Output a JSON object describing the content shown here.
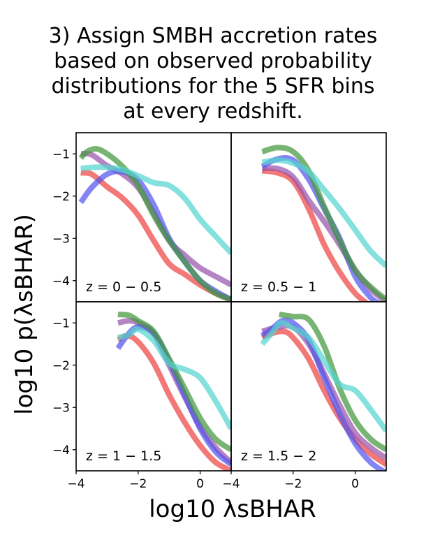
{
  "title": {
    "lines": [
      "3) Assign SMBH accretion rates",
      "based on observed probability",
      "distributions for the 5 SFR bins",
      "at every redshift."
    ]
  },
  "chart_data": {
    "type": "line",
    "xlabel": "log10 λsBHAR",
    "ylabel": "log10 p(λsBHAR)",
    "xlim": [
      -4,
      1
    ],
    "ylim": [
      -4.5,
      -0.5
    ],
    "xticks": [
      -4,
      -2,
      0
    ],
    "yticks": [
      -1,
      -2,
      -3,
      -4
    ],
    "series_colors": {
      "red": "#ee4444",
      "purple": "#9955aa",
      "blue": "#5555ee",
      "green": "#44993f",
      "cyan": "#55d5d0"
    },
    "panels": [
      {
        "label": "z = 0 − 0.5",
        "series": [
          {
            "name": "red",
            "points": [
              [
                -3.85,
                -1.45
              ],
              [
                -3.5,
                -1.48
              ],
              [
                -3.0,
                -1.78
              ],
              [
                -2.5,
                -2.05
              ],
              [
                -2.0,
                -2.45
              ],
              [
                -1.5,
                -3.05
              ],
              [
                -1.0,
                -3.6
              ],
              [
                -0.5,
                -3.85
              ],
              [
                0.0,
                -4.1
              ],
              [
                0.5,
                -4.3
              ],
              [
                1.0,
                -4.45
              ]
            ]
          },
          {
            "name": "purple",
            "points": [
              [
                -3.85,
                -1.0
              ],
              [
                -3.5,
                -1.02
              ],
              [
                -3.0,
                -1.28
              ],
              [
                -2.5,
                -1.48
              ],
              [
                -2.0,
                -1.8
              ],
              [
                -1.5,
                -2.4
              ],
              [
                -1.0,
                -3.05
              ],
              [
                -0.5,
                -3.4
              ],
              [
                0.0,
                -3.7
              ],
              [
                0.5,
                -3.9
              ],
              [
                1.0,
                -4.1
              ]
            ]
          },
          {
            "name": "blue",
            "points": [
              [
                -3.85,
                -2.15
              ],
              [
                -3.5,
                -1.8
              ],
              [
                -3.0,
                -1.48
              ],
              [
                -2.5,
                -1.42
              ],
              [
                -2.0,
                -1.62
              ],
              [
                -1.5,
                -2.2
              ],
              [
                -1.0,
                -3.0
              ],
              [
                -0.5,
                -3.55
              ],
              [
                0.0,
                -4.0
              ],
              [
                0.5,
                -4.25
              ],
              [
                1.0,
                -4.45
              ]
            ]
          },
          {
            "name": "green",
            "points": [
              [
                -3.85,
                -1.1
              ],
              [
                -3.65,
                -0.95
              ],
              [
                -3.35,
                -0.88
              ],
              [
                -3.0,
                -1.0
              ],
              [
                -2.5,
                -1.3
              ],
              [
                -2.0,
                -1.75
              ],
              [
                -1.5,
                -2.45
              ],
              [
                -1.0,
                -3.05
              ],
              [
                -0.5,
                -3.55
              ],
              [
                0.0,
                -4.0
              ],
              [
                0.5,
                -4.3
              ],
              [
                1.0,
                -4.45
              ]
            ]
          },
          {
            "name": "cyan",
            "points": [
              [
                -3.85,
                -1.35
              ],
              [
                -3.5,
                -1.32
              ],
              [
                -3.0,
                -1.32
              ],
              [
                -2.5,
                -1.38
              ],
              [
                -2.0,
                -1.52
              ],
              [
                -1.5,
                -1.68
              ],
              [
                -1.0,
                -1.75
              ],
              [
                -0.5,
                -2.05
              ],
              [
                0.0,
                -2.55
              ],
              [
                0.5,
                -2.95
              ],
              [
                1.0,
                -3.35
              ]
            ]
          }
        ]
      },
      {
        "label": "z = 0.5 − 1",
        "series": [
          {
            "name": "red",
            "points": [
              [
                -3.0,
                -1.4
              ],
              [
                -2.5,
                -1.45
              ],
              [
                -2.0,
                -1.65
              ],
              [
                -1.5,
                -2.3
              ],
              [
                -1.0,
                -3.15
              ],
              [
                -0.5,
                -3.8
              ],
              [
                0.0,
                -4.3
              ],
              [
                0.4,
                -4.55
              ]
            ]
          },
          {
            "name": "purple",
            "points": [
              [
                -3.0,
                -1.35
              ],
              [
                -2.5,
                -1.35
              ],
              [
                -2.0,
                -1.55
              ],
              [
                -1.5,
                -2.1
              ],
              [
                -1.0,
                -2.6
              ],
              [
                -0.5,
                -3.15
              ],
              [
                0.0,
                -3.75
              ],
              [
                0.5,
                -4.2
              ],
              [
                1.0,
                -4.5
              ]
            ]
          },
          {
            "name": "blue",
            "points": [
              [
                -3.0,
                -1.3
              ],
              [
                -2.5,
                -1.12
              ],
              [
                -2.0,
                -1.15
              ],
              [
                -1.5,
                -1.6
              ],
              [
                -1.0,
                -2.3
              ],
              [
                -0.5,
                -3.0
              ],
              [
                0.0,
                -3.9
              ],
              [
                0.5,
                -4.4
              ],
              [
                0.8,
                -4.55
              ]
            ]
          },
          {
            "name": "green",
            "points": [
              [
                -3.0,
                -0.95
              ],
              [
                -2.5,
                -0.85
              ],
              [
                -2.0,
                -0.95
              ],
              [
                -1.5,
                -1.4
              ],
              [
                -1.0,
                -2.25
              ],
              [
                -0.5,
                -3.05
              ],
              [
                0.0,
                -3.75
              ],
              [
                0.5,
                -4.15
              ],
              [
                1.0,
                -4.45
              ]
            ]
          },
          {
            "name": "cyan",
            "points": [
              [
                -3.0,
                -1.2
              ],
              [
                -2.5,
                -1.15
              ],
              [
                -2.0,
                -1.22
              ],
              [
                -1.5,
                -1.42
              ],
              [
                -1.0,
                -1.85
              ],
              [
                -0.5,
                -2.3
              ],
              [
                0.0,
                -2.8
              ],
              [
                0.5,
                -3.3
              ],
              [
                1.0,
                -3.65
              ]
            ]
          }
        ]
      },
      {
        "label": "z = 1 − 1.5",
        "series": [
          {
            "name": "red",
            "points": [
              [
                -2.65,
                -1.4
              ],
              [
                -2.35,
                -1.3
              ],
              [
                -2.0,
                -1.45
              ],
              [
                -1.5,
                -1.95
              ],
              [
                -1.0,
                -2.7
              ],
              [
                -0.5,
                -3.35
              ],
              [
                0.0,
                -3.9
              ],
              [
                0.5,
                -4.3
              ],
              [
                1.0,
                -4.5
              ]
            ]
          },
          {
            "name": "purple",
            "points": [
              [
                -2.65,
                -1.0
              ],
              [
                -2.3,
                -0.95
              ],
              [
                -2.0,
                -1.0
              ],
              [
                -1.5,
                -1.25
              ],
              [
                -1.0,
                -2.0
              ],
              [
                -0.5,
                -2.75
              ],
              [
                0.0,
                -3.45
              ],
              [
                0.5,
                -3.95
              ],
              [
                1.0,
                -4.3
              ]
            ]
          },
          {
            "name": "blue",
            "points": [
              [
                -2.65,
                -1.6
              ],
              [
                -2.3,
                -1.25
              ],
              [
                -2.0,
                -1.1
              ],
              [
                -1.5,
                -1.25
              ],
              [
                -1.0,
                -1.9
              ],
              [
                -0.5,
                -2.7
              ],
              [
                0.0,
                -3.5
              ],
              [
                0.5,
                -4.05
              ],
              [
                1.0,
                -4.35
              ]
            ]
          },
          {
            "name": "green",
            "points": [
              [
                -2.65,
                -0.8
              ],
              [
                -2.3,
                -0.82
              ],
              [
                -2.0,
                -0.95
              ],
              [
                -1.5,
                -1.2
              ],
              [
                -1.0,
                -1.85
              ],
              [
                -0.5,
                -2.55
              ],
              [
                0.0,
                -3.25
              ],
              [
                0.5,
                -3.75
              ],
              [
                1.0,
                -4.0
              ]
            ]
          },
          {
            "name": "cyan",
            "points": [
              [
                -2.65,
                -1.35
              ],
              [
                -2.3,
                -1.28
              ],
              [
                -2.0,
                -1.15
              ],
              [
                -1.5,
                -1.42
              ],
              [
                -1.0,
                -1.95
              ],
              [
                -0.5,
                -2.1
              ],
              [
                0.0,
                -2.3
              ],
              [
                0.5,
                -2.85
              ],
              [
                1.0,
                -3.5
              ]
            ]
          }
        ]
      },
      {
        "label": "z = 1.5 − 2",
        "series": [
          {
            "name": "red",
            "points": [
              [
                -3.0,
                -1.35
              ],
              [
                -2.7,
                -1.25
              ],
              [
                -2.3,
                -1.2
              ],
              [
                -2.0,
                -1.35
              ],
              [
                -1.5,
                -1.85
              ],
              [
                -1.0,
                -2.6
              ],
              [
                -0.5,
                -3.25
              ],
              [
                0.0,
                -3.75
              ],
              [
                0.5,
                -4.1
              ],
              [
                1.0,
                -4.35
              ]
            ]
          },
          {
            "name": "purple",
            "points": [
              [
                -3.0,
                -1.2
              ],
              [
                -2.5,
                -1.1
              ],
              [
                -2.0,
                -1.1
              ],
              [
                -1.5,
                -1.5
              ],
              [
                -1.0,
                -2.2
              ],
              [
                -0.5,
                -2.95
              ],
              [
                0.0,
                -3.6
              ],
              [
                0.5,
                -3.95
              ],
              [
                1.0,
                -4.2
              ]
            ]
          },
          {
            "name": "blue",
            "points": [
              [
                -3.0,
                -1.3
              ],
              [
                -2.7,
                -1.15
              ],
              [
                -2.35,
                -0.95
              ],
              [
                -2.0,
                -1.0
              ],
              [
                -1.5,
                -1.4
              ],
              [
                -1.0,
                -2.3
              ],
              [
                -0.5,
                -3.15
              ],
              [
                0.0,
                -3.85
              ],
              [
                0.5,
                -4.3
              ],
              [
                1.0,
                -4.55
              ]
            ]
          },
          {
            "name": "green",
            "points": [
              [
                -2.45,
                -0.8
              ],
              [
                -2.0,
                -0.85
              ],
              [
                -1.5,
                -0.92
              ],
              [
                -1.0,
                -1.55
              ],
              [
                -0.5,
                -2.55
              ],
              [
                0.0,
                -3.3
              ],
              [
                0.5,
                -3.75
              ],
              [
                1.0,
                -4.0
              ]
            ]
          },
          {
            "name": "cyan",
            "points": [
              [
                -3.0,
                -1.5
              ],
              [
                -2.7,
                -1.25
              ],
              [
                -2.4,
                -1.0
              ],
              [
                -2.0,
                -1.12
              ],
              [
                -1.5,
                -1.35
              ],
              [
                -1.0,
                -1.9
              ],
              [
                -0.5,
                -2.45
              ],
              [
                0.0,
                -2.6
              ],
              [
                0.5,
                -3.05
              ],
              [
                1.0,
                -3.55
              ]
            ]
          }
        ]
      }
    ]
  }
}
